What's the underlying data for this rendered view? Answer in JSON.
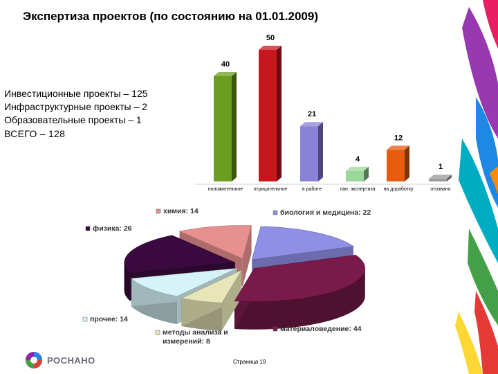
{
  "title": "Экспертиза проектов (по состоянию на 01.01.2009)",
  "summary": {
    "line1": "Инвестиционные проекты – 125",
    "line2": "Инфраструктурные проекты – 2",
    "line3": "Образовательные проекты – 1",
    "line4": "ВСЕГО  –  128"
  },
  "footer": {
    "page": "Страница 19",
    "brand": "РОСНАНО"
  },
  "chart_data": [
    {
      "type": "bar",
      "categories": [
        "положительное",
        "отрицательное",
        "в работе",
        "пан. экспертиза",
        "на доработку",
        "отозвано"
      ],
      "values": [
        40,
        50,
        21,
        4,
        12,
        1
      ],
      "colors": [
        "#6b9e1f",
        "#c8161d",
        "#8a82d8",
        "#9bd69b",
        "#e85a10",
        "#9a9a9a"
      ],
      "ylim": [
        0,
        50
      ],
      "grid": false,
      "legend": "none"
    },
    {
      "type": "pie",
      "style": "3d-exploded",
      "labels": [
        "биология и медицина: 22",
        "материаловедение: 44",
        "методы анализа и измерений: 8",
        "прочее: 14",
        "физика: 26",
        "химия: 14"
      ],
      "categories": [
        "биология и медицина",
        "материаловедение",
        "методы анализа и измерений",
        "прочее",
        "физика",
        "химия"
      ],
      "values": [
        22,
        44,
        8,
        14,
        26,
        14
      ],
      "colors": [
        "#8f8fe6",
        "#7a1a4a",
        "#e8e6b8",
        "#d6f4f8",
        "#3a0a3e",
        "#e89090"
      ]
    }
  ]
}
